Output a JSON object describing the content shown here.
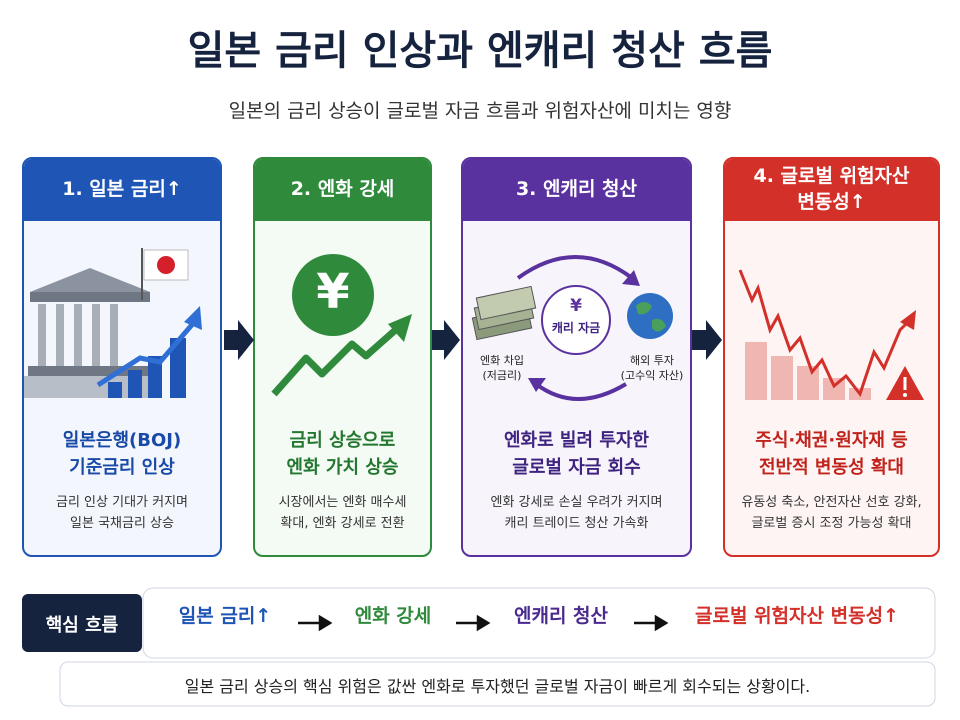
{
  "title": "일본 금리 인상과 엔캐리 청산 흐름",
  "subtitle": "일본의 금리 상승이 글로벌 자금 흐름과 위험자산에 미치는 영향",
  "steps": [
    {
      "header": "1. 일본 금리↑",
      "headline": "일본은행(BOJ)\n기준금리 인상",
      "description": "금리 인상 기대가 커지며\n일본 국채금리 상승"
    },
    {
      "header": "2. 엔화 강세",
      "icon": "¥",
      "headline": "금리 상승으로\n엔화 가치 상승",
      "description": "시장에서는 엔화 매수세\n확대, 엔화 강세로 전환"
    },
    {
      "header": "3. 엔캐리 청산",
      "icon": "¥",
      "center_label": "캐리 자금",
      "left_label": "엔화 차입\n(저금리)",
      "right_label": "해외 투자\n(고수익 자산)",
      "headline": "엔화로 빌려 투자한\n글로벌 자금 회수",
      "description": "엔화 강세로 손실 우려가 커지며\n캐리 트레이드 청산 가속화"
    },
    {
      "header": "4. 글로벌 위험자산\n변동성↑",
      "headline": "주식·채권·원자재 등\n전반적 변동성 확대",
      "description": "유동성 축소, 안전자산 선호 강화,\n글로벌 증시 조정 가능성 확대"
    }
  ],
  "summary": {
    "label": "핵심 흐름",
    "flow": [
      "일본 금리↑",
      "엔화 강세",
      "엔캐리 청산",
      "글로벌 위험자산 변동성↑"
    ],
    "note": "일본 금리 상승의 핵심 위험은 값싼 엔화로 투자했던 글로벌 자금이 빠르게 회수되는 상황이다."
  }
}
